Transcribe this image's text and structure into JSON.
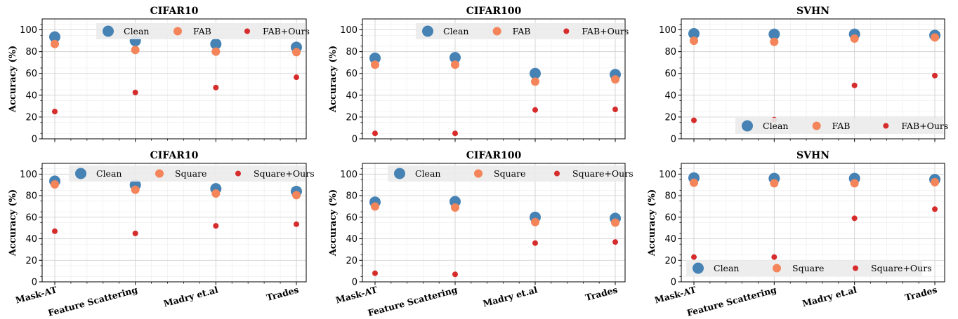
{
  "colors": {
    "clean": "#4682b4",
    "attack": "#f4845a",
    "ours": "#d62c2c"
  },
  "chart_data": [
    {
      "type": "scatter",
      "title": "CIFAR10",
      "xlabel": "",
      "ylabel": "Accuracy (%)",
      "categories": [
        "Mask-AT",
        "Feature Scattering",
        "Madry et.al",
        "Trades"
      ],
      "ylim": [
        0,
        110
      ],
      "yticks": [
        0,
        20,
        40,
        60,
        80,
        100
      ],
      "grid": true,
      "legend_position": "top-right",
      "series": [
        {
          "name": "Clean",
          "values": [
            93.5,
            90,
            87,
            84
          ]
        },
        {
          "name": "FAB",
          "values": [
            87,
            81.5,
            80,
            79.5
          ]
        },
        {
          "name": "FAB+Ours",
          "values": [
            25,
            42.5,
            47,
            56.5
          ]
        }
      ]
    },
    {
      "type": "scatter",
      "title": "CIFAR100",
      "xlabel": "",
      "ylabel": "Accuracy (%)",
      "categories": [
        "Mask-AT",
        "Feature Scattering",
        "Madry et.al",
        "Trades"
      ],
      "ylim": [
        0,
        110
      ],
      "yticks": [
        0,
        20,
        40,
        60,
        80,
        100
      ],
      "grid": true,
      "legend_position": "top-right",
      "series": [
        {
          "name": "Clean",
          "values": [
            74,
            74.5,
            60,
            59
          ]
        },
        {
          "name": "FAB",
          "values": [
            68,
            68,
            52.5,
            54.5
          ]
        },
        {
          "name": "FAB+Ours",
          "values": [
            5,
            5,
            26.5,
            27
          ]
        }
      ]
    },
    {
      "type": "scatter",
      "title": "SVHN",
      "xlabel": "",
      "ylabel": "",
      "categories": [
        "Mask-AT",
        "Feature Scattering",
        "Madry et.al",
        "Trades"
      ],
      "ylim": [
        0,
        110
      ],
      "yticks": [
        0,
        20,
        40,
        60,
        80,
        100
      ],
      "grid": true,
      "legend_position": "bottom-right",
      "series": [
        {
          "name": "Clean",
          "values": [
            96.5,
            96,
            96,
            95
          ]
        },
        {
          "name": "FAB",
          "values": [
            90,
            89,
            92,
            93
          ]
        },
        {
          "name": "FAB+Ours",
          "values": [
            17,
            17.5,
            49,
            58
          ]
        }
      ]
    },
    {
      "type": "scatter",
      "title": "CIFAR10",
      "xlabel": "",
      "ylabel": "Accuracy (%)",
      "categories": [
        "Mask-AT",
        "Feature Scattering",
        "Madry et.al",
        "Trades"
      ],
      "ylim": [
        0,
        110
      ],
      "yticks": [
        0,
        20,
        40,
        60,
        80,
        100
      ],
      "grid": true,
      "legend_position": "top-right",
      "series": [
        {
          "name": "Clean",
          "values": [
            93.5,
            90,
            86.5,
            84
          ]
        },
        {
          "name": "Square",
          "values": [
            90.5,
            85.5,
            82,
            80.5
          ]
        },
        {
          "name": "Square+Ours",
          "values": [
            47,
            45,
            52,
            53.5
          ]
        }
      ]
    },
    {
      "type": "scatter",
      "title": "CIFAR100",
      "xlabel": "",
      "ylabel": "Accuracy (%)",
      "categories": [
        "Mask-AT",
        "Feature Scattering",
        "Madry et.al",
        "Trades"
      ],
      "ylim": [
        0,
        110
      ],
      "yticks": [
        0,
        20,
        40,
        60,
        80,
        100
      ],
      "grid": true,
      "legend_position": "top-right",
      "series": [
        {
          "name": "Clean",
          "values": [
            74,
            74.5,
            60,
            59
          ]
        },
        {
          "name": "Square",
          "values": [
            70,
            69,
            55.5,
            55
          ]
        },
        {
          "name": "Square+Ours",
          "values": [
            8,
            7,
            36,
            37
          ]
        }
      ]
    },
    {
      "type": "scatter",
      "title": "SVHN",
      "xlabel": "",
      "ylabel": "Accuracy (%)",
      "categories": [
        "Mask-AT",
        "Feature Scattering",
        "Madry et.al",
        "Trades"
      ],
      "ylim": [
        0,
        110
      ],
      "yticks": [
        0,
        20,
        40,
        60,
        80,
        100
      ],
      "grid": true,
      "legend_position": "bottom-right",
      "series": [
        {
          "name": "Clean",
          "values": [
            96.5,
            96,
            96,
            95
          ]
        },
        {
          "name": "Square",
          "values": [
            92,
            91.5,
            91.5,
            92.5
          ]
        },
        {
          "name": "Square+Ours",
          "values": [
            23,
            23,
            59,
            67.5
          ]
        }
      ]
    }
  ]
}
